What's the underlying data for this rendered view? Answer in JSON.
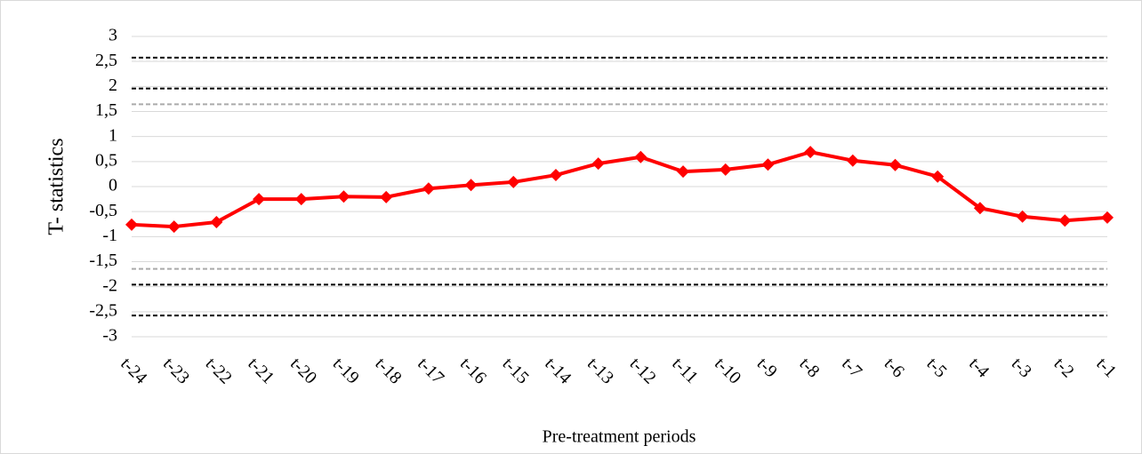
{
  "chart_data": {
    "type": "line",
    "x_label": "Pre-treatment periods",
    "y_label": "T- statistics",
    "categories": [
      "t-24",
      "t-23",
      "t-22",
      "t-21",
      "t-20",
      "t-19",
      "t-18",
      "t-17",
      "t-16",
      "t-15",
      "t-14",
      "t-13",
      "t-12",
      "t-11",
      "t-10",
      "t-9",
      "t-8",
      "t-7",
      "t-6",
      "t-5",
      "t-4",
      "t-3",
      "t-2",
      "t-1"
    ],
    "values": [
      -0.76,
      -0.8,
      -0.71,
      -0.25,
      -0.25,
      -0.2,
      -0.21,
      -0.04,
      0.03,
      0.09,
      0.23,
      0.46,
      0.59,
      0.3,
      0.34,
      0.44,
      0.69,
      0.52,
      0.43,
      0.2,
      -0.43,
      -0.6,
      -0.68,
      -0.62
    ],
    "color": "#ff0000",
    "ylim": [
      -3,
      3
    ],
    "yticks": [
      {
        "value": -3,
        "label": "-3"
      },
      {
        "value": -2.5,
        "label": "-2,5"
      },
      {
        "value": -2,
        "label": "-2"
      },
      {
        "value": -1.5,
        "label": "-1,5"
      },
      {
        "value": -1,
        "label": "-1"
      },
      {
        "value": -0.5,
        "label": "-0,5"
      },
      0,
      {
        "value": 0.5,
        "label": "0,5"
      },
      1,
      {
        "value": 1.5,
        "label": "1,5"
      },
      2,
      {
        "value": 2.5,
        "label": "2,5"
      },
      3
    ],
    "grid": true,
    "reference_lines": [
      {
        "value": 2.576,
        "color": "#000000"
      },
      {
        "value": 1.96,
        "color": "#000000"
      },
      {
        "value": 1.645,
        "color": "#aaaaaa"
      },
      {
        "value": -1.645,
        "color": "#aaaaaa"
      },
      {
        "value": -1.96,
        "color": "#000000"
      },
      {
        "value": -2.576,
        "color": "#000000"
      }
    ]
  }
}
